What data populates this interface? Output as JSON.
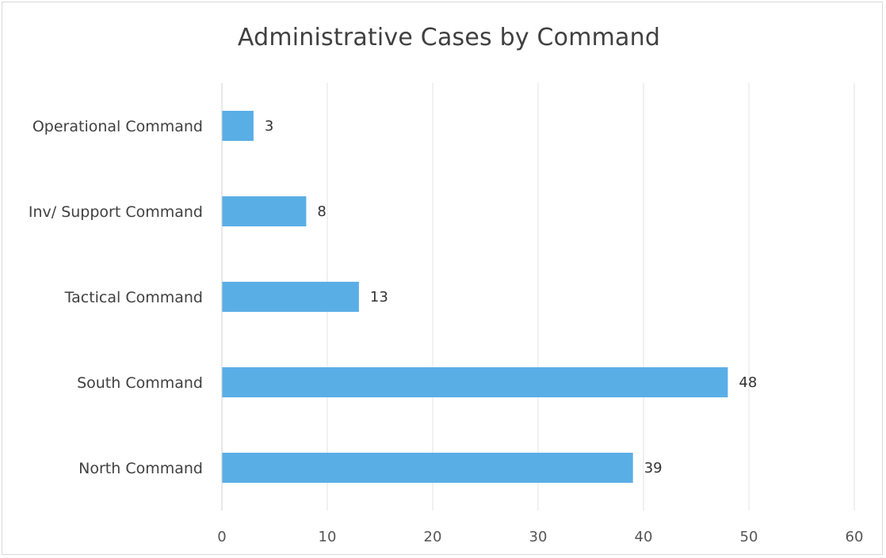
{
  "chart_data": {
    "type": "bar",
    "orientation": "horizontal",
    "title": "Administrative Cases by Command",
    "xlabel": "",
    "ylabel": "",
    "categories": [
      "Operational Command",
      "Inv/ Support Command",
      "Tactical Command",
      "South Command",
      "North Command"
    ],
    "values": [
      3,
      8,
      13,
      48,
      39
    ],
    "data_labels": [
      "3",
      "8",
      "13",
      "48",
      "39"
    ],
    "xlim": [
      0,
      60
    ],
    "x_ticks": [
      0,
      10,
      20,
      30,
      40,
      50,
      60
    ],
    "grid": true,
    "legend": "none",
    "bar_color": "#5aaee6"
  }
}
